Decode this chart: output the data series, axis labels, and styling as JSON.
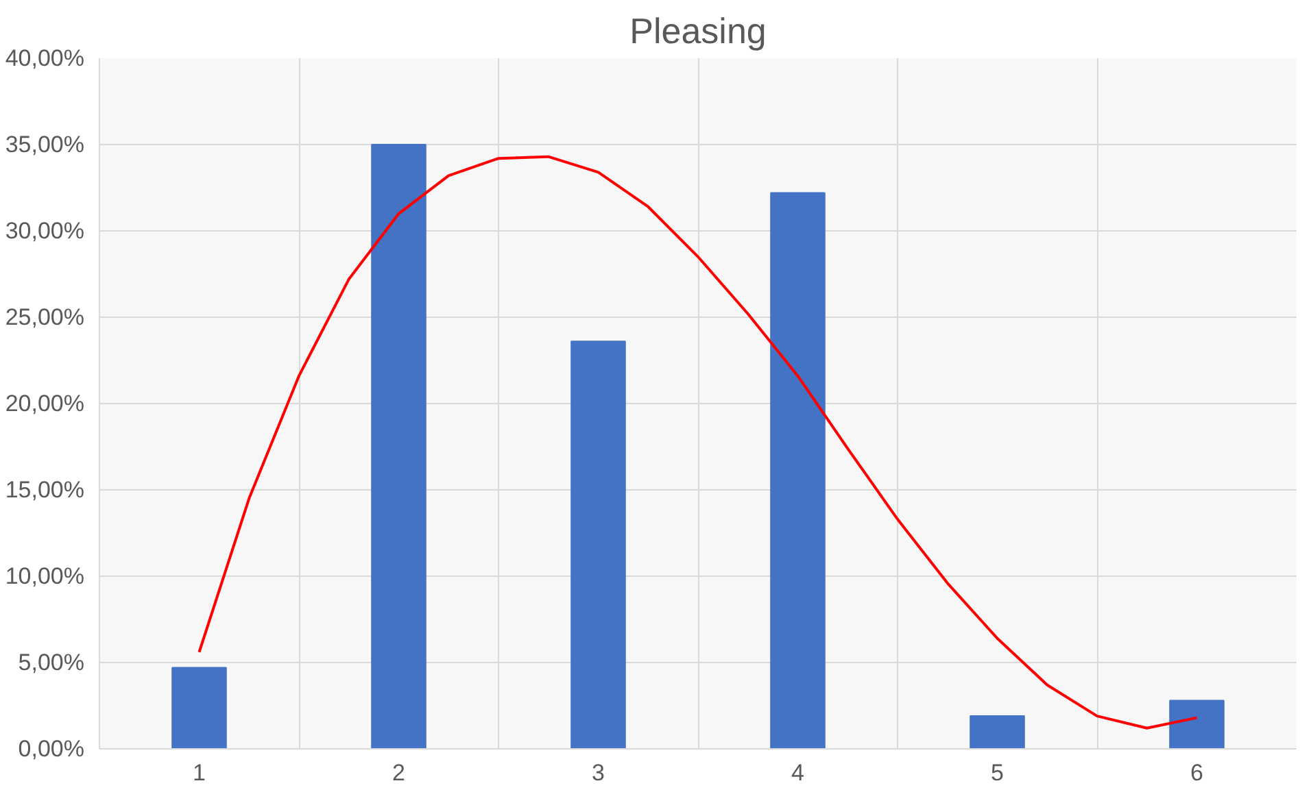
{
  "chart_data": {
    "type": "bar",
    "title": "Pleasing",
    "x": [
      1,
      2,
      3,
      4,
      5,
      6
    ],
    "series": [
      {
        "color": "#4472c4",
        "values": [
          4.7,
          35.0,
          23.6,
          32.2,
          1.9,
          2.8
        ]
      },
      {
        "type": "line",
        "color": "#ff0000",
        "x": [
          1,
          1.25,
          1.5,
          1.75,
          2,
          2.25,
          2.5,
          2.75,
          3,
          3.25,
          3.5,
          3.75,
          4,
          4.25,
          4.5,
          4.75,
          5,
          5.25,
          5.5,
          5.75,
          6
        ],
        "values": [
          5.6,
          14.5,
          21.6,
          27.2,
          31.0,
          33.2,
          34.2,
          34.3,
          33.4,
          31.4,
          28.5,
          25.2,
          21.6,
          17.4,
          13.3,
          9.6,
          6.4,
          3.7,
          1.9,
          1.2,
          1.8
        ]
      }
    ],
    "xlim": [
      0.5,
      6.5
    ],
    "xticks": [
      1,
      2,
      3,
      4,
      5,
      6
    ],
    "ylim": [
      0,
      40
    ],
    "yticks": [
      {
        "value": 0,
        "label": "0,00%"
      },
      {
        "value": 5,
        "label": "5,00%"
      },
      {
        "value": 10,
        "label": "10,00%"
      },
      {
        "value": 15,
        "label": "15,00%"
      },
      {
        "value": 20,
        "label": "20,00%"
      },
      {
        "value": 25,
        "label": "25,00%"
      },
      {
        "value": 30,
        "label": "30,00%"
      },
      {
        "value": 35,
        "label": "35,00%"
      },
      {
        "value": 40,
        "label": "40,00%"
      }
    ],
    "grid": true,
    "line_style": "solid",
    "marker": "none"
  }
}
